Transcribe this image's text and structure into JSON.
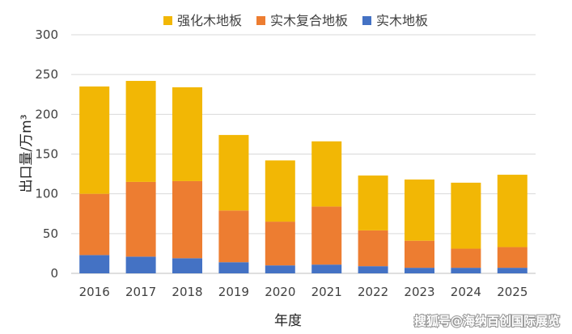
{
  "chart_data": {
    "type": "bar",
    "stacked": true,
    "categories": [
      "2016",
      "2017",
      "2018",
      "2019",
      "2020",
      "2021",
      "2022",
      "2023",
      "2024",
      "2025"
    ],
    "series": [
      {
        "name": "实木地板",
        "color": "#4472C4",
        "values": [
          23,
          21,
          19,
          14,
          10,
          11,
          9,
          7,
          7,
          7
        ]
      },
      {
        "name": "实木复合地板",
        "color": "#ED7D31",
        "values": [
          77,
          94,
          97,
          65,
          55,
          73,
          45,
          34,
          24,
          26
        ]
      },
      {
        "name": "强化木地板",
        "color": "#F2B705",
        "values": [
          135,
          127,
          118,
          95,
          77,
          82,
          69,
          77,
          83,
          91
        ]
      }
    ],
    "legend_order": [
      "强化木地板",
      "实木复合地板",
      "实木地板"
    ],
    "legend_position": "top",
    "xlabel": "年度",
    "ylabel": "出口量/万m³",
    "ylim": [
      0,
      300
    ],
    "yticks": [
      0,
      50,
      100,
      150,
      200,
      250,
      300
    ],
    "grid": true
  },
  "watermark": "搜狐号@海纳百创国际展览"
}
